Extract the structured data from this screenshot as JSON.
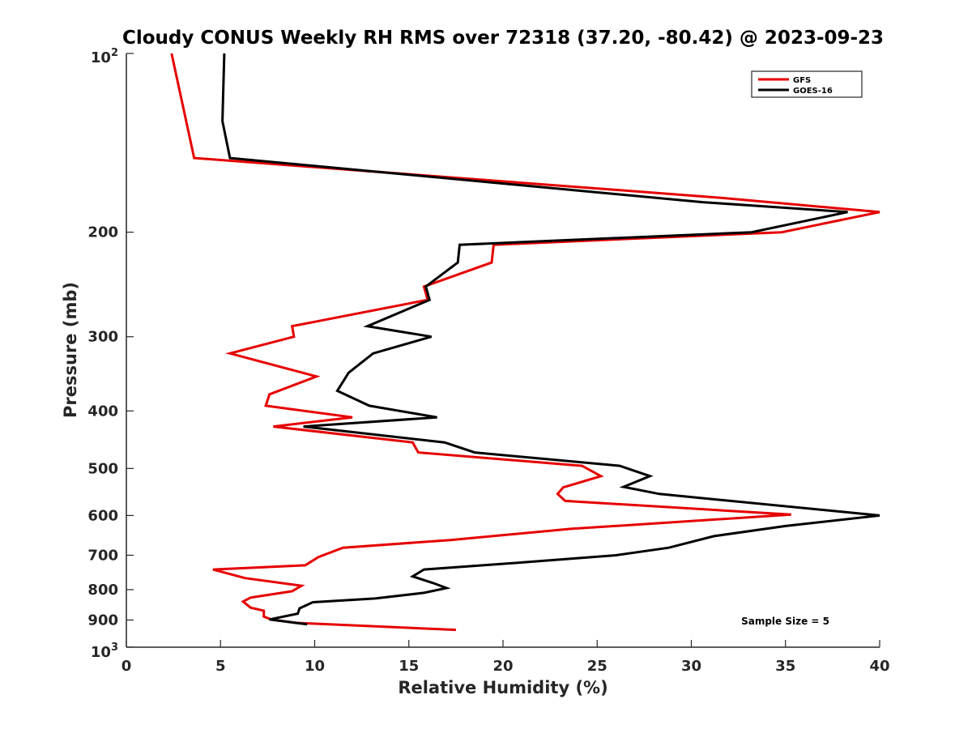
{
  "chart_data": {
    "type": "line",
    "title": "Cloudy CONUS Weekly RH RMS over 72318 (37.20, -80.42) @ 2023-09-23",
    "xlabel": "Relative Humidity (%)",
    "ylabel": "Pressure (mb)",
    "xlim": [
      0,
      40
    ],
    "ylim": [
      100,
      1000
    ],
    "yscale": "log",
    "y_reversed": true,
    "x_ticks": [
      0,
      5,
      10,
      15,
      20,
      25,
      30,
      35,
      40
    ],
    "x_tick_labels": [
      "0",
      "5",
      "10",
      "15",
      "20",
      "25",
      "30",
      "35",
      "40"
    ],
    "y_ticks": [
      200,
      300,
      400,
      500,
      600,
      700,
      800,
      900
    ],
    "y_tick_labels": [
      "200",
      "300",
      "400",
      "500",
      "600",
      "700",
      "800",
      "900"
    ],
    "y_end_labels": {
      "top": {
        "value": 100,
        "base": "10",
        "exp": "2"
      },
      "bottom": {
        "value": 1000,
        "base": "10",
        "exp": "3"
      }
    },
    "legend_position": "top-right",
    "annotation": "Sample Size = 5",
    "series": [
      {
        "name": "GFS",
        "color": "#e60000",
        "points": [
          [
            2.4,
            100
          ],
          [
            3.6,
            150
          ],
          [
            31.5,
            175
          ],
          [
            40,
            185
          ],
          [
            34.8,
            200
          ],
          [
            19.5,
            210
          ],
          [
            19.4,
            225
          ],
          [
            15.8,
            247
          ],
          [
            16.0,
            260
          ],
          [
            8.8,
            288
          ],
          [
            8.9,
            300
          ],
          [
            5.5,
            320
          ],
          [
            10.1,
            350
          ],
          [
            7.6,
            375
          ],
          [
            7.4,
            392
          ],
          [
            12.0,
            410
          ],
          [
            7.8,
            425
          ],
          [
            15.2,
            452
          ],
          [
            15.5,
            470
          ],
          [
            24.2,
            495
          ],
          [
            25.2,
            515
          ],
          [
            23.2,
            538
          ],
          [
            22.9,
            552
          ],
          [
            23.3,
            567
          ],
          [
            35.3,
            598
          ],
          [
            23.6,
            632
          ],
          [
            17.2,
            660
          ],
          [
            11.5,
            680
          ],
          [
            10.2,
            705
          ],
          [
            9.5,
            728
          ],
          [
            4.6,
            740
          ],
          [
            6.3,
            765
          ],
          [
            9.3,
            788
          ],
          [
            8.8,
            805
          ],
          [
            6.6,
            825
          ],
          [
            6.2,
            838
          ],
          [
            6.6,
            858
          ],
          [
            7.3,
            868
          ],
          [
            7.3,
            888
          ],
          [
            7.7,
            898
          ],
          [
            9.0,
            910
          ],
          [
            17.5,
            935
          ]
        ]
      },
      {
        "name": "GOES-16",
        "color": "#000000",
        "points": [
          [
            5.2,
            100
          ],
          [
            5.1,
            130
          ],
          [
            5.5,
            150
          ],
          [
            30.6,
            178
          ],
          [
            38.3,
            185
          ],
          [
            33.2,
            200
          ],
          [
            17.7,
            210
          ],
          [
            17.6,
            225
          ],
          [
            15.9,
            247
          ],
          [
            16.1,
            260
          ],
          [
            12.8,
            288
          ],
          [
            16.2,
            300
          ],
          [
            13.1,
            320
          ],
          [
            11.8,
            345
          ],
          [
            11.2,
            370
          ],
          [
            12.9,
            392
          ],
          [
            16.5,
            410
          ],
          [
            9.4,
            425
          ],
          [
            16.9,
            452
          ],
          [
            18.5,
            470
          ],
          [
            26.2,
            495
          ],
          [
            27.8,
            515
          ],
          [
            26.4,
            537
          ],
          [
            28.3,
            552
          ],
          [
            40,
            600
          ],
          [
            35.0,
            625
          ],
          [
            31.2,
            650
          ],
          [
            28.8,
            680
          ],
          [
            26.0,
            700
          ],
          [
            21.0,
            720
          ],
          [
            15.8,
            740
          ],
          [
            15.2,
            760
          ],
          [
            16.3,
            780
          ],
          [
            17.0,
            795
          ],
          [
            15.8,
            810
          ],
          [
            13.2,
            828
          ],
          [
            9.9,
            840
          ],
          [
            9.2,
            860
          ],
          [
            9.1,
            878
          ],
          [
            7.6,
            898
          ],
          [
            9.6,
            915
          ]
        ]
      }
    ]
  }
}
